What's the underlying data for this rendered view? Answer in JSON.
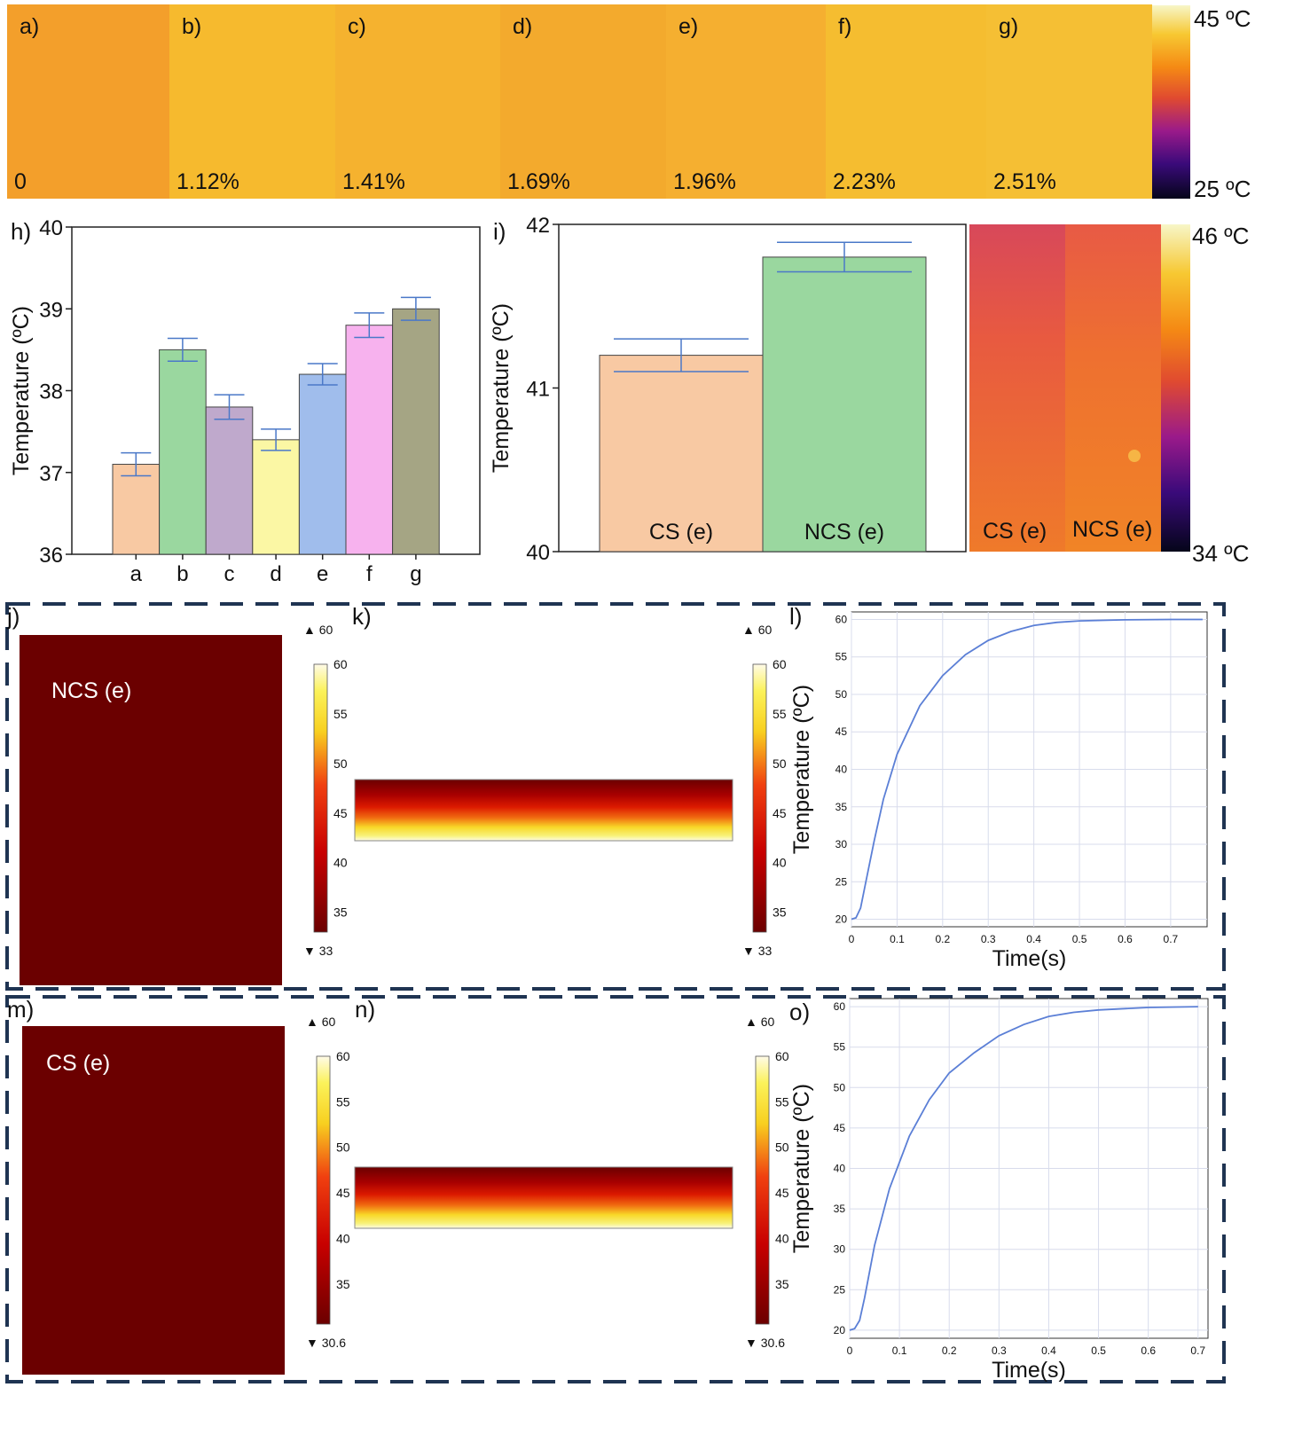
{
  "colors": {
    "therm_hot": "#f5f3b0",
    "therm_mid": "#f08a1a",
    "therm_cold": "#120a30",
    "bar_a": "#f8c9a3",
    "bar_b": "#9ad79f",
    "bar_c": "#bfa9cc",
    "bar_d": "#fbf7a4",
    "bar_e": "#a0bdec",
    "bar_f": "#f7b2ee",
    "bar_g": "#a5a584",
    "error_bar": "#4a78c8",
    "sim_dark": "#6b0000",
    "dashed_border": "#1f3452",
    "curve": "#5b7fd6"
  },
  "thermal_strip": {
    "panels": [
      {
        "letter": "a)",
        "value": "0",
        "tone": "#f39a1e"
      },
      {
        "letter": "b)",
        "value": "1.12%",
        "tone": "#f6b621"
      },
      {
        "letter": "c)",
        "value": "1.41%",
        "tone": "#f5ae22"
      },
      {
        "letter": "d)",
        "value": "1.69%",
        "tone": "#f3a520"
      },
      {
        "letter": "e)",
        "value": "1.96%",
        "tone": "#f5aa24"
      },
      {
        "letter": "f)",
        "value": "2.23%",
        "tone": "#f5b924"
      },
      {
        "letter": "g)",
        "value": "2.51%",
        "tone": "#f5bc28"
      }
    ],
    "scale_max": "45 ºC",
    "scale_min": "25 ºC"
  },
  "panel_i_thermal": {
    "labels": [
      "CS (e)",
      "NCS (e)"
    ],
    "scale_max": "46 ºC",
    "scale_min": "34 ºC"
  },
  "sim": {
    "top": {
      "letters": [
        "j)",
        "k)",
        "l)"
      ],
      "sample_label": "NCS (e)",
      "range_max": "▲ 60",
      "range_min": "▼ 33",
      "colorbar_ticks": [
        "60",
        "55",
        "50",
        "45",
        "40",
        "35"
      ]
    },
    "bottom": {
      "letters": [
        "m)",
        "n)",
        "o)"
      ],
      "sample_label": "CS (e)",
      "range_max": "▲ 60",
      "range_min": "▼ 30.6",
      "colorbar_ticks": [
        "60",
        "55",
        "50",
        "45",
        "40",
        "35"
      ]
    }
  },
  "chart_data": [
    {
      "panel": "h)",
      "type": "bar",
      "categories": [
        "a",
        "b",
        "c",
        "d",
        "e",
        "f",
        "g"
      ],
      "values": [
        37.1,
        38.5,
        37.8,
        37.4,
        38.2,
        38.8,
        39.0
      ],
      "errors": [
        0.14,
        0.14,
        0.15,
        0.13,
        0.13,
        0.15,
        0.14
      ],
      "ylabel": "Temperature (ºC)",
      "xlabel": "",
      "ylim": [
        36,
        40
      ],
      "yticks": [
        "36",
        "37",
        "38",
        "39",
        "40"
      ]
    },
    {
      "panel": "i)",
      "type": "bar",
      "categories": [
        "CS (e)",
        "NCS (e)"
      ],
      "values": [
        41.2,
        41.8
      ],
      "errors": [
        0.1,
        0.09
      ],
      "ylabel": "Temperature (ºC)",
      "xlabel": "",
      "ylim": [
        40,
        42
      ],
      "yticks": [
        "40",
        "41",
        "42"
      ]
    },
    {
      "panel": "l)",
      "type": "line",
      "xlabel": "Time(s)",
      "ylabel": "Temperature (ºC)",
      "xlim": [
        0,
        0.78
      ],
      "ylim": [
        19,
        61
      ],
      "xticks": [
        "0",
        "0.1",
        "0.2",
        "0.3",
        "0.4",
        "0.5",
        "0.6",
        "0.7"
      ],
      "yticks": [
        "20",
        "25",
        "30",
        "35",
        "40",
        "45",
        "50",
        "55",
        "60"
      ],
      "grid": true,
      "x": [
        0,
        0.01,
        0.02,
        0.03,
        0.05,
        0.07,
        0.1,
        0.15,
        0.2,
        0.25,
        0.3,
        0.35,
        0.4,
        0.45,
        0.5,
        0.6,
        0.7,
        0.77
      ],
      "y": [
        20,
        20.2,
        21.5,
        24.5,
        30.5,
        36,
        42,
        48.5,
        52.5,
        55.3,
        57.2,
        58.4,
        59.2,
        59.6,
        59.8,
        59.95,
        60,
        60
      ]
    },
    {
      "panel": "o)",
      "type": "line",
      "xlabel": "Time(s)",
      "ylabel": "Temperature (ºC)",
      "xlim": [
        0,
        0.72
      ],
      "ylim": [
        19,
        61
      ],
      "xticks": [
        "0",
        "0.1",
        "0.2",
        "0.3",
        "0.4",
        "0.5",
        "0.6",
        "0.7"
      ],
      "yticks": [
        "20",
        "25",
        "30",
        "35",
        "40",
        "45",
        "50",
        "55",
        "60"
      ],
      "grid": true,
      "x": [
        0,
        0.01,
        0.02,
        0.03,
        0.05,
        0.08,
        0.12,
        0.16,
        0.2,
        0.25,
        0.3,
        0.35,
        0.4,
        0.45,
        0.5,
        0.6,
        0.7
      ],
      "y": [
        20,
        20.2,
        21.2,
        24,
        30.5,
        37.5,
        44,
        48.5,
        51.8,
        54.3,
        56.4,
        57.8,
        58.8,
        59.3,
        59.6,
        59.9,
        60
      ]
    }
  ]
}
